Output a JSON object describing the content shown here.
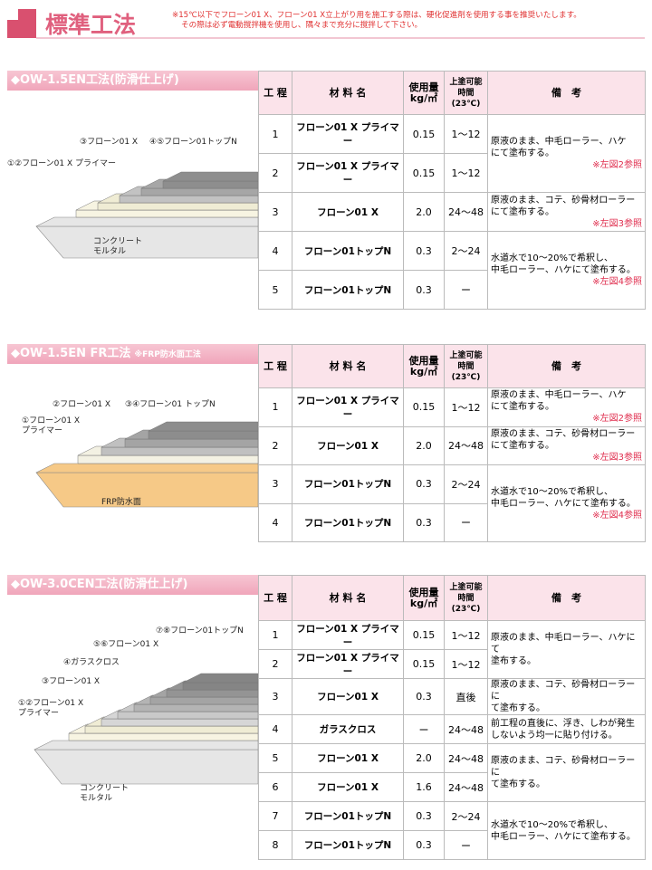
{
  "header": {
    "title": "標準工法",
    "notes": [
      "※15℃以下でフローン01 X、フローン01 X立上がり用を施工する際は、硬化促進剤を使用する事を推奨いたします。",
      "その際は必ず電動撹拌機を使用し、隅々まで充分に撹拌して下さい。"
    ]
  },
  "table_header": {
    "step": "工 程",
    "material": "材 料 名",
    "amount": [
      "使用量",
      "kg/㎡"
    ],
    "time": [
      "上塗可能",
      "時間",
      "(23℃)"
    ],
    "remarks": "備　考"
  },
  "sections": [
    {
      "title": "◆OW-1.5EN工法(防滑仕上げ)",
      "diagram_labels": [
        [
          "③フローン01 X"
        ],
        [
          "④⑤フローン01トップN"
        ],
        [
          "①②フローン01 X プライマー"
        ],
        [
          "コンクリート",
          "モルタル"
        ]
      ],
      "rows": [
        {
          "step": "1",
          "material": "フローン01 X プライマー",
          "amount": "0.15",
          "time": "1～12"
        },
        {
          "step": "2",
          "material": "フローン01 X プライマー",
          "amount": "0.15",
          "time": "1～12"
        },
        {
          "step": "3",
          "material": "フローン01 X",
          "amount": "2.0",
          "time": "24～48"
        },
        {
          "step": "4",
          "material": "フローン01トップN",
          "amount": "0.3",
          "time": "2～24"
        },
        {
          "step": "5",
          "material": "フローン01トップN",
          "amount": "0.3",
          "time": "ー"
        }
      ],
      "remarks": [
        {
          "span": 2,
          "lines": [
            "原液のまま、中毛ローラー、ハケ",
            "にて塗布する。"
          ],
          "ref": "※左図2参照"
        },
        {
          "span": 1,
          "lines": [
            "原液のまま、コテ、砂骨材ローラー",
            "にて塗布する。"
          ],
          "ref": "※左図3参照"
        },
        {
          "span": 2,
          "lines": [
            "水道水で10～20%で希釈し、",
            "中毛ローラー、ハケにて塗布する。"
          ],
          "ref": "※左図4参照"
        }
      ]
    },
    {
      "title": "◆OW-1.5EN FR工法",
      "subtitle": "※FRP防水面工法",
      "diagram_labels": [
        [
          "②フローン01 X"
        ],
        [
          "③④フローン01 トップN"
        ],
        [
          "①フローン01 X",
          "プライマー"
        ],
        [
          "FRP防水面"
        ]
      ],
      "rows": [
        {
          "step": "1",
          "material": "フローン01 X プライマー",
          "amount": "0.15",
          "time": "1～12"
        },
        {
          "step": "2",
          "material": "フローン01 X",
          "amount": "2.0",
          "time": "24～48"
        },
        {
          "step": "3",
          "material": "フローン01トップN",
          "amount": "0.3",
          "time": "2～24"
        },
        {
          "step": "4",
          "material": "フローン01トップN",
          "amount": "0.3",
          "time": "ー"
        }
      ],
      "remarks": [
        {
          "span": 1,
          "lines": [
            "原液のまま、中毛ローラー、ハケ",
            "にて塗布する。"
          ],
          "ref": "※左図2参照"
        },
        {
          "span": 1,
          "lines": [
            "原液のまま、コテ、砂骨材ローラー",
            "にて塗布する。"
          ],
          "ref": "※左図3参照"
        },
        {
          "span": 2,
          "lines": [
            "水道水で10～20%で希釈し、",
            "中毛ローラー、ハケにて塗布する。"
          ],
          "ref": "※左図4参照"
        }
      ]
    },
    {
      "title": "◆OW-3.0CEN工法(防滑仕上げ)",
      "diagram_labels": [
        [
          "⑦⑧フローン01トップN"
        ],
        [
          "⑤⑥フローン01 X"
        ],
        [
          "④ガラスクロス"
        ],
        [
          "③フローン01 X"
        ],
        [
          "①②フローン01 X",
          "プライマー"
        ],
        [
          "コンクリート",
          "モルタル"
        ]
      ],
      "rows": [
        {
          "step": "1",
          "material": "フローン01 X プライマー",
          "amount": "0.15",
          "time": "1～12"
        },
        {
          "step": "2",
          "material": "フローン01 X プライマー",
          "amount": "0.15",
          "time": "1～12"
        },
        {
          "step": "3",
          "material": "フローン01 X",
          "amount": "0.3",
          "time": "直後"
        },
        {
          "step": "4",
          "material": "ガラスクロス",
          "amount": "ー",
          "time": "24～48"
        },
        {
          "step": "5",
          "material": "フローン01 X",
          "amount": "2.0",
          "time": "24～48"
        },
        {
          "step": "6",
          "material": "フローン01 X",
          "amount": "1.6",
          "time": "24～48"
        },
        {
          "step": "7",
          "material": "フローン01トップN",
          "amount": "0.3",
          "time": "2～24"
        },
        {
          "step": "8",
          "material": "フローン01トップN",
          "amount": "0.3",
          "time": "ー"
        }
      ],
      "remarks": [
        {
          "span": 2,
          "lines": [
            "原液のまま、中毛ローラー、ハケにて",
            "塗布する。"
          ]
        },
        {
          "span": 1,
          "lines": [
            "原液のまま、コテ、砂骨材ローラーに",
            "て塗布する。"
          ]
        },
        {
          "span": 1,
          "lines": [
            "前工程の直後に、浮き、しわが発生",
            "しないよう均一に貼り付ける。"
          ]
        },
        {
          "span": 2,
          "lines": [
            "原液のまま、コテ、砂骨材ローラーに",
            "て塗布する。"
          ]
        },
        {
          "span": 2,
          "lines": [
            "水道水で10～20%で希釈し、",
            "中毛ローラー、ハケにて塗布する。"
          ]
        }
      ]
    }
  ]
}
